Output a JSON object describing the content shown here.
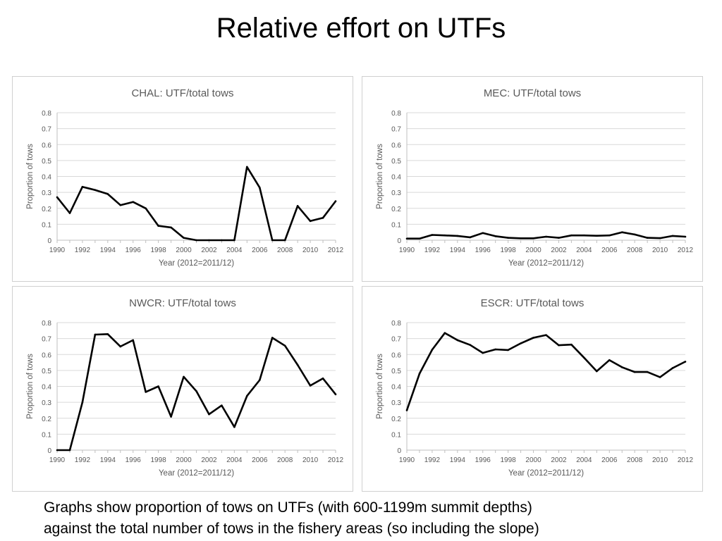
{
  "slide": {
    "title": "Relative effort on UTFs",
    "caption": [
      "Graphs show proportion of tows on UTFs (with 600-1199m summit depths)",
      "against the total number of tows in the fishery areas (so including the slope)"
    ]
  },
  "colors": {
    "line": "#000000",
    "grid": "#d9d9d9",
    "axis_text": "#595959",
    "border": "#d0d0d0"
  },
  "chart_data": [
    {
      "type": "line",
      "title": "CHAL: UTF/total tows",
      "xlabel": "Year (2012=2011/12)",
      "ylabel": "Proportion of tows",
      "ylim": [
        0,
        0.8
      ],
      "yticks": [
        "0",
        "0.1",
        "0.2",
        "0.3",
        "0.4",
        "0.5",
        "0.6",
        "0.7",
        "0.8"
      ],
      "xticks": [
        "1990",
        "1992",
        "1994",
        "1996",
        "1998",
        "2000",
        "2002",
        "2004",
        "2006",
        "2008",
        "2010",
        "2012"
      ],
      "grid": true,
      "x": [
        1990,
        1991,
        1992,
        1993,
        1994,
        1995,
        1996,
        1997,
        1998,
        1999,
        2000,
        2001,
        2002,
        2003,
        2004,
        2005,
        2006,
        2007,
        2008,
        2009,
        2010,
        2011,
        2012
      ],
      "values": [
        0.27,
        0.17,
        0.335,
        0.315,
        0.29,
        0.22,
        0.24,
        0.2,
        0.09,
        0.08,
        0.015,
        0.0,
        0.0,
        0.0,
        0.0,
        0.46,
        0.33,
        0.0,
        0.0,
        0.215,
        0.12,
        0.14,
        0.245
      ]
    },
    {
      "type": "line",
      "title": "MEC: UTF/total tows",
      "xlabel": "Year (2012=2011/12)",
      "ylabel": "Proportion of tows",
      "ylim": [
        0,
        0.8
      ],
      "yticks": [
        "0",
        "0.1",
        "0.2",
        "0.3",
        "0.4",
        "0.5",
        "0.6",
        "0.7",
        "0.8"
      ],
      "xticks": [
        "1990",
        "1992",
        "1994",
        "1996",
        "1998",
        "2000",
        "2002",
        "2004",
        "2006",
        "2008",
        "2010",
        "2012"
      ],
      "grid": true,
      "x": [
        1990,
        1991,
        1992,
        1993,
        1994,
        1995,
        1996,
        1997,
        1998,
        1999,
        2000,
        2001,
        2002,
        2003,
        2004,
        2005,
        2006,
        2007,
        2008,
        2009,
        2010,
        2011,
        2012
      ],
      "values": [
        0.01,
        0.01,
        0.033,
        0.03,
        0.027,
        0.018,
        0.045,
        0.025,
        0.015,
        0.012,
        0.012,
        0.022,
        0.015,
        0.03,
        0.03,
        0.028,
        0.03,
        0.05,
        0.036,
        0.015,
        0.013,
        0.027,
        0.022
      ]
    },
    {
      "type": "line",
      "title": "NWCR: UTF/total tows",
      "xlabel": "Year (2012=2011/12)",
      "ylabel": "Proportion of tows",
      "ylim": [
        0,
        0.8
      ],
      "yticks": [
        "0",
        "0.1",
        "0.2",
        "0.3",
        "0.4",
        "0.5",
        "0.6",
        "0.7",
        "0.8"
      ],
      "xticks": [
        "1990",
        "1992",
        "1994",
        "1996",
        "1998",
        "2000",
        "2002",
        "2004",
        "2006",
        "2008",
        "2010",
        "2012"
      ],
      "grid": true,
      "x": [
        1990,
        1991,
        1992,
        1993,
        1994,
        1995,
        1996,
        1997,
        1998,
        1999,
        2000,
        2001,
        2002,
        2003,
        2004,
        2005,
        2006,
        2007,
        2008,
        2009,
        2010,
        2011,
        2012
      ],
      "values": [
        0.0,
        0.0,
        0.3,
        0.725,
        0.728,
        0.65,
        0.69,
        0.365,
        0.4,
        0.21,
        0.46,
        0.37,
        0.225,
        0.28,
        0.145,
        0.34,
        0.44,
        0.705,
        0.655,
        0.535,
        0.405,
        0.45,
        0.35
      ]
    },
    {
      "type": "line",
      "title": "ESCR: UTF/total tows",
      "xlabel": "Year (2012=2011/12)",
      "ylabel": "Proportion of tows",
      "ylim": [
        0,
        0.8
      ],
      "yticks": [
        "0",
        "0.1",
        "0.2",
        "0.3",
        "0.4",
        "0.5",
        "0.6",
        "0.7",
        "0.8"
      ],
      "xticks": [
        "1990",
        "1992",
        "1994",
        "1996",
        "1998",
        "2000",
        "2002",
        "2004",
        "2006",
        "2008",
        "2010",
        "2012"
      ],
      "grid": true,
      "x": [
        1990,
        1991,
        1992,
        1993,
        1994,
        1995,
        1996,
        1997,
        1998,
        1999,
        2000,
        2001,
        2002,
        2003,
        2004,
        2005,
        2006,
        2007,
        2008,
        2009,
        2010,
        2011,
        2012
      ],
      "values": [
        0.25,
        0.48,
        0.63,
        0.735,
        0.69,
        0.66,
        0.61,
        0.632,
        0.628,
        0.67,
        0.705,
        0.722,
        0.658,
        0.662,
        0.58,
        0.495,
        0.565,
        0.52,
        0.49,
        0.49,
        0.458,
        0.515,
        0.555
      ]
    }
  ]
}
